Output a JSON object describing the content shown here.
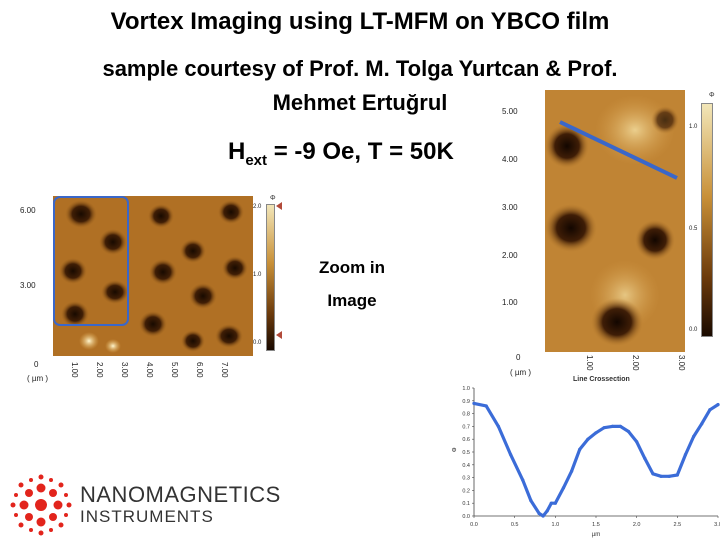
{
  "header": {
    "title_line1": "Vortex Imaging using LT-MFM on YBCO film",
    "title_line2": "sample courtesy of Prof. M. Tolga Yurtcan & Prof.",
    "title_line3": "Mehmet Ertuğrul",
    "hext_H": "H",
    "hext_sub": "ext",
    "hext_rest": " = -9 Oe, T = 50K"
  },
  "zoom_label": {
    "line1": "Zoom in",
    "line2": "Image"
  },
  "left_image": {
    "y_ticks": [
      "6.00",
      "3.00",
      "0"
    ],
    "x_unit": "( µm )",
    "x_ticks": [
      "1.00",
      "2.00",
      "3.00",
      "4.00",
      "5.00",
      "6.00",
      "7.00"
    ],
    "cbar_ticks": [
      "2.0",
      "1.0",
      "0.0"
    ],
    "cbar_unit": "Φ"
  },
  "right_image": {
    "y_ticks": [
      "5.00",
      "4.00",
      "3.00",
      "2.00",
      "1.00",
      "0"
    ],
    "x_unit": "( µm )",
    "x_ticks": [
      "1.00",
      "2.00",
      "3.00"
    ],
    "cbar_ticks": [
      "1.0",
      "0.5",
      "0.0"
    ],
    "cbar_unit": "Φ",
    "crossection_label": "Line Crossection"
  },
  "chart_data": {
    "type": "line",
    "title": "",
    "xlabel": "µm",
    "ylabel": "Φ",
    "xlim": [
      0,
      3.0
    ],
    "ylim": [
      0,
      1.0
    ],
    "x_ticks": [
      "0.0",
      "0.5",
      "1.0",
      "1.5",
      "2.0",
      "2.5",
      "3.0"
    ],
    "y_ticks": [
      "0.0",
      "0.1",
      "0.2",
      "0.3",
      "0.4",
      "0.5",
      "0.6",
      "0.7",
      "0.8",
      "0.9",
      "1.0"
    ],
    "series": [
      {
        "color": "#3b6cd8",
        "x": [
          0.0,
          0.15,
          0.3,
          0.45,
          0.6,
          0.7,
          0.8,
          0.85,
          0.9,
          0.95,
          1.0,
          1.1,
          1.2,
          1.3,
          1.4,
          1.5,
          1.6,
          1.7,
          1.8,
          1.9,
          2.0,
          2.1,
          2.2,
          2.3,
          2.4,
          2.5,
          2.6,
          2.7,
          2.8,
          2.9,
          3.0
        ],
        "y": [
          0.88,
          0.86,
          0.7,
          0.48,
          0.28,
          0.12,
          0.02,
          0.0,
          0.04,
          0.1,
          0.1,
          0.22,
          0.35,
          0.52,
          0.6,
          0.65,
          0.69,
          0.7,
          0.7,
          0.66,
          0.58,
          0.45,
          0.33,
          0.31,
          0.31,
          0.32,
          0.48,
          0.62,
          0.72,
          0.83,
          0.87
        ]
      }
    ]
  },
  "logo": {
    "line1": "NANOMAGNETICS",
    "line2": "INSTRUMENTS",
    "colors": {
      "red": "#e2241c",
      "text": "#333333"
    }
  }
}
